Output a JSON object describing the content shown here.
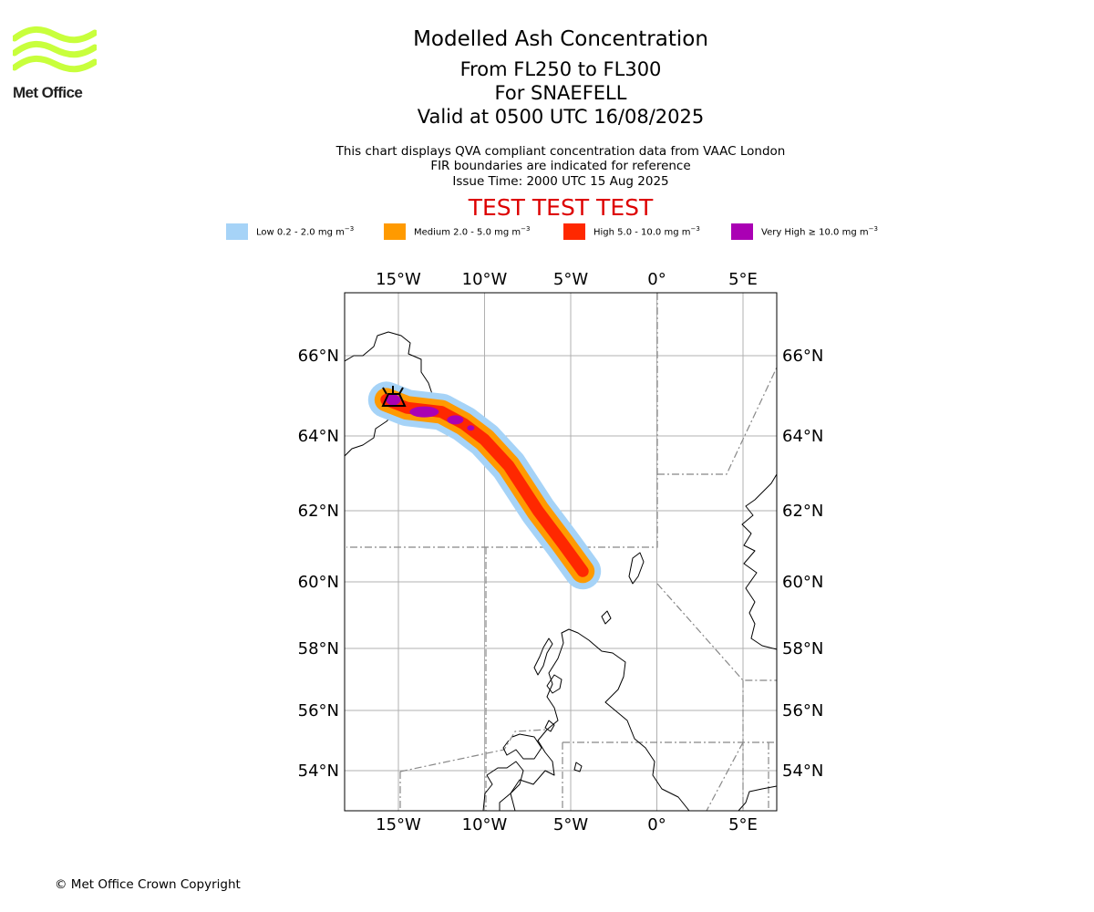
{
  "logo": {
    "name": "Met Office",
    "text": "Met Office",
    "wave_color": "#c8ff3c"
  },
  "title": {
    "main": "Modelled Ash Concentration",
    "levels": "From FL250 to FL300",
    "volcano": "For SNAEFELL",
    "valid": "Valid at 0500 UTC 16/08/2025"
  },
  "notes": {
    "line1": "This chart displays QVA compliant concentration data from VAAC London",
    "line2": "FIR boundaries are indicated for reference",
    "line3": "Issue Time: 2000 UTC 15 Aug 2025"
  },
  "test_banner": "TEST TEST TEST",
  "legend": [
    {
      "label": "Low 0.2 - 2.0 mg m",
      "color": "#a6d3f7"
    },
    {
      "label": "Medium 2.0 - 5.0 mg m",
      "color": "#ff9a00"
    },
    {
      "label": "High 5.0 - 10.0 mg m",
      "color": "#ff2800"
    },
    {
      "label": "Very High  ≥  10.0 mg m",
      "color": "#aa00b4"
    }
  ],
  "legend_unit_exponent": "−3",
  "map": {
    "lon_ticks": [
      "15°W",
      "10°W",
      "5°W",
      "0°",
      "5°E"
    ],
    "lat_ticks": [
      "66°N",
      "64°N",
      "62°N",
      "60°N",
      "58°N",
      "56°N",
      "54°N"
    ],
    "lon_values": [
      -15,
      -10,
      -5,
      0,
      5
    ],
    "lat_values": [
      66,
      64,
      62,
      60,
      58,
      56,
      54
    ],
    "lon_range": [
      -18.2,
      7.0
    ],
    "lat_range": [
      52.8,
      67.6
    ],
    "grid": true,
    "volcano_marker": "volcano-icon",
    "ash_colors": {
      "low": "#a6d3f7",
      "medium": "#ff9a00",
      "high": "#ff2800",
      "very_high": "#aa00b4"
    },
    "plume_axis": [
      [
        -15.7,
        64.9
      ],
      [
        -14.5,
        64.7
      ],
      [
        -12.5,
        64.6
      ],
      [
        -11.2,
        64.3
      ],
      [
        -10.0,
        63.9
      ],
      [
        -8.6,
        63.2
      ],
      [
        -6.9,
        62.0
      ],
      [
        -5.5,
        61.1
      ],
      [
        -4.3,
        60.3
      ]
    ],
    "fir_boundary_color": "#777777"
  },
  "copyright": "© Met Office Crown Copyright"
}
